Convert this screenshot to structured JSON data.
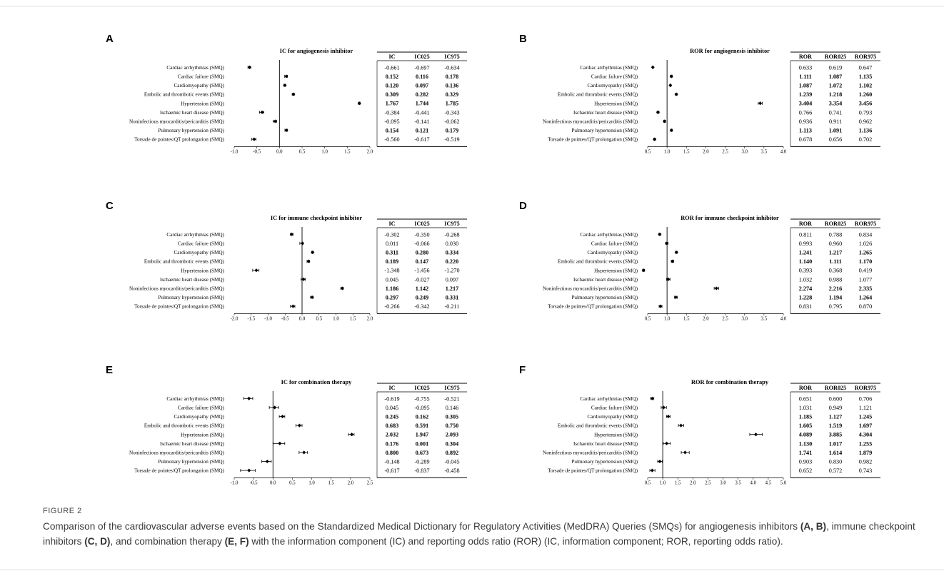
{
  "figure": {
    "label": "FIGURE 2",
    "caption_parts": [
      "Comparison of the cardiovascular adverse events based on the Standardized Medical Dictionary for Regulatory Activities (MedDRA) Queries (SMQs) for angiogenesis inhibitors ",
      "(A, B)",
      ", immune checkpoint inhibitors ",
      "(C, D)",
      ", and combination therapy ",
      "(E, F)",
      " with the information component (IC) and reporting odds ratio (ROR) (IC, information component; ROR, reporting odds ratio)."
    ]
  },
  "chart_data": [
    {
      "panel": "A",
      "type": "forest",
      "title": "IC for angiogenesis inhibitor",
      "columns": [
        "IC",
        "IC025",
        "IC975"
      ],
      "xlim": [
        -1.0,
        2.0
      ],
      "xticks": [
        "-1.0",
        "-0.5",
        "0.0",
        "0.5",
        "1.0",
        "1.5",
        "2.0"
      ],
      "reference": 0,
      "categories": [
        "Cardiac arrhythmias (SMQ)",
        "Cardiac failure (SMQ)",
        "Cardiomyopathy (SMQ)",
        "Embolic and thrombotic events (SMQ)",
        "Hypertension (SMQ)",
        "Ischaemic heart disease (SMQ)",
        "Noninfectious myocarditis/pericarditis (SMQ)",
        "Pulmonary hypertension (SMQ)",
        "Torsade de pointes/QT prolongation (SMQ)"
      ],
      "rows": [
        {
          "v": [
            "-0.661",
            "-0.697",
            "-0.634"
          ],
          "bold": false
        },
        {
          "v": [
            "0.152",
            "0.116",
            "0.178"
          ],
          "bold": true
        },
        {
          "v": [
            "0.120",
            "0.097",
            "0.136"
          ],
          "bold": true
        },
        {
          "v": [
            "0.309",
            "0.282",
            "0.329"
          ],
          "bold": true
        },
        {
          "v": [
            "1.767",
            "1.744",
            "1.785"
          ],
          "bold": true
        },
        {
          "v": [
            "-0.384",
            "-0.441",
            "-0.343"
          ],
          "bold": false
        },
        {
          "v": [
            "-0.095",
            "-0.141",
            "-0.062"
          ],
          "bold": false
        },
        {
          "v": [
            "0.154",
            "0.121",
            "0.179"
          ],
          "bold": true
        },
        {
          "v": [
            "-0.560",
            "-0.617",
            "-0.519"
          ],
          "bold": false
        }
      ]
    },
    {
      "panel": "B",
      "type": "forest",
      "title": "ROR for angiogenesis inhibitor",
      "columns": [
        "ROR",
        "ROR025",
        "ROR975"
      ],
      "xlim": [
        0.5,
        4.0
      ],
      "xticks": [
        "0.5",
        "1.0",
        "1.5",
        "2.0",
        "2.5",
        "3.0",
        "3.5",
        "4.0"
      ],
      "reference": 1,
      "categories": [
        "Cardiac arrhythmias (SMQ)",
        "Cardiac failure (SMQ)",
        "Cardiomyopathy (SMQ)",
        "Embolic and thrombotic events (SMQ)",
        "Hypertension (SMQ)",
        "Ischaemic heart disease (SMQ)",
        "Noninfectious myocarditis/pericarditis (SMQ)",
        "Pulmonary hypertension (SMQ)",
        "Torsade de pointes/QT prolongation (SMQ)"
      ],
      "rows": [
        {
          "v": [
            "0.633",
            "0.619",
            "0.647"
          ],
          "bold": false
        },
        {
          "v": [
            "1.111",
            "1.087",
            "1.135"
          ],
          "bold": true
        },
        {
          "v": [
            "1.087",
            "1.072",
            "1.102"
          ],
          "bold": true
        },
        {
          "v": [
            "1.239",
            "1.218",
            "1.260"
          ],
          "bold": true
        },
        {
          "v": [
            "3.404",
            "3.354",
            "3.456"
          ],
          "bold": true
        },
        {
          "v": [
            "0.766",
            "0.741",
            "0.793"
          ],
          "bold": false
        },
        {
          "v": [
            "0.936",
            "0.911",
            "0.962"
          ],
          "bold": false
        },
        {
          "v": [
            "1.113",
            "1.091",
            "1.136"
          ],
          "bold": true
        },
        {
          "v": [
            "0.678",
            "0.656",
            "0.702"
          ],
          "bold": false
        }
      ]
    },
    {
      "panel": "C",
      "type": "forest",
      "title": "IC for immune checkpoint inhibitor",
      "columns": [
        "IC",
        "IC025",
        "IC975"
      ],
      "xlim": [
        -2.0,
        2.0
      ],
      "xticks": [
        "-2.0",
        "-1.5",
        "-1.0",
        "-0.5",
        "0.0",
        "0.5",
        "1.0",
        "1.5",
        "2.0"
      ],
      "reference": 0,
      "categories": [
        "Cardiac arrhythmias (SMQ)",
        "Cardiac failure (SMQ)",
        "Cardiomyopathy (SMQ)",
        "Embolic and thrombotic events (SMQ)",
        "Hypertension (SMQ)",
        "Ischaemic heart disease (SMQ)",
        "Noninfectious myocarditis/pericarditis (SMQ)",
        "Pulmonary hypertension (SMQ)",
        "Torsade de pointes/QT prolongation (SMQ)"
      ],
      "rows": [
        {
          "v": [
            "-0.302",
            "-0.350",
            "-0.268"
          ],
          "bold": false
        },
        {
          "v": [
            "0.011",
            "-0.066",
            "0.030"
          ],
          "bold": false
        },
        {
          "v": [
            "0.311",
            "0.280",
            "0.334"
          ],
          "bold": true
        },
        {
          "v": [
            "0.189",
            "0.147",
            "0.220"
          ],
          "bold": true
        },
        {
          "v": [
            "-1.348",
            "-1.456",
            "-1.270"
          ],
          "bold": false
        },
        {
          "v": [
            "0.045",
            "-0.027",
            "0.097"
          ],
          "bold": false
        },
        {
          "v": [
            "1.186",
            "1.142",
            "1.217"
          ],
          "bold": true
        },
        {
          "v": [
            "0.297",
            "0.249",
            "0.331"
          ],
          "bold": true
        },
        {
          "v": [
            "-0.266",
            "-0.342",
            "-0.211"
          ],
          "bold": false
        }
      ]
    },
    {
      "panel": "D",
      "type": "forest",
      "title": "ROR for immune checkpoint inhibitor",
      "columns": [
        "ROR",
        "ROR025",
        "ROR975"
      ],
      "xlim": [
        0.5,
        4.0
      ],
      "xticks": [
        "0.5",
        "1.0",
        "1.5",
        "2.0",
        "2.5",
        "3.0",
        "3.5",
        "4.0"
      ],
      "reference": 1,
      "categories": [
        "Cardiac arrhythmias (SMQ)",
        "Cardiac failure (SMQ)",
        "Cardiomyopathy (SMQ)",
        "Embolic and thrombotic events (SMQ)",
        "Hypertension (SMQ)",
        "Ischaemic heart disease (SMQ)",
        "Noninfectious myocarditis/pericarditis (SMQ)",
        "Pulmonary hypertension (SMQ)",
        "Torsade de pointes/QT prolongation (SMQ)"
      ],
      "rows": [
        {
          "v": [
            "0.811",
            "0.788",
            "0.834"
          ],
          "bold": false
        },
        {
          "v": [
            "0.993",
            "0.960",
            "1.026"
          ],
          "bold": false
        },
        {
          "v": [
            "1.241",
            "1.217",
            "1.265"
          ],
          "bold": true
        },
        {
          "v": [
            "1.140",
            "1.111",
            "1.170"
          ],
          "bold": true
        },
        {
          "v": [
            "0.393",
            "0.368",
            "0.419"
          ],
          "bold": false
        },
        {
          "v": [
            "1.032",
            "0.988",
            "1.077"
          ],
          "bold": false
        },
        {
          "v": [
            "2.274",
            "2.216",
            "2.335"
          ],
          "bold": true
        },
        {
          "v": [
            "1.228",
            "1.194",
            "1.264"
          ],
          "bold": true
        },
        {
          "v": [
            "0.831",
            "0.795",
            "0.870"
          ],
          "bold": false
        }
      ]
    },
    {
      "panel": "E",
      "type": "forest",
      "title": "IC for combination therapy",
      "columns": [
        "IC",
        "IC025",
        "IC975"
      ],
      "xlim": [
        -1.0,
        2.5
      ],
      "xticks": [
        "-1.0",
        "-0.5",
        "0.0",
        "0.5",
        "1.0",
        "1.5",
        "2.0",
        "2.5"
      ],
      "reference": 0,
      "categories": [
        "Cardiac arrhythmias (SMQ)",
        "Cardiac failure (SMQ)",
        "Cardiomyopathy (SMQ)",
        "Embolic and thrombotic events (SMQ)",
        "Hypertension (SMQ)",
        "Ischaemic heart disease (SMQ)",
        "Noninfectious myocarditis/pericarditis (SMQ)",
        "Pulmonary hypertension (SMQ)",
        "Torsade de pointes/QT prolongation (SMQ)"
      ],
      "rows": [
        {
          "v": [
            "-0.619",
            "-0.755",
            "-0.521"
          ],
          "bold": false
        },
        {
          "v": [
            "0.045",
            "-0.095",
            "0.146"
          ],
          "bold": false
        },
        {
          "v": [
            "0.245",
            "0.162",
            "0.305"
          ],
          "bold": true
        },
        {
          "v": [
            "0.683",
            "0.591",
            "0.750"
          ],
          "bold": true
        },
        {
          "v": [
            "2.032",
            "1.947",
            "2.093"
          ],
          "bold": true
        },
        {
          "v": [
            "0.176",
            "0.001",
            "0.304"
          ],
          "bold": true
        },
        {
          "v": [
            "0.800",
            "0.673",
            "0.892"
          ],
          "bold": true
        },
        {
          "v": [
            "-0.148",
            "-0.289",
            "-0.045"
          ],
          "bold": false
        },
        {
          "v": [
            "-0.617",
            "-0.837",
            "-0.458"
          ],
          "bold": false
        }
      ]
    },
    {
      "panel": "F",
      "type": "forest",
      "title": "ROR for combination therapy",
      "columns": [
        "ROR",
        "ROR025",
        "ROR975"
      ],
      "xlim": [
        0.5,
        5.0
      ],
      "xticks": [
        "0.5",
        "1.0",
        "1.5",
        "2.0",
        "2.5",
        "3.0",
        "3.5",
        "4.0",
        "4.5",
        "5.0"
      ],
      "reference": 1,
      "categories": [
        "Cardiac arrhythmias (SMQ)",
        "Cardiac failure (SMQ)",
        "Cardiomyopathy (SMQ)",
        "Embolic and thrombotic events (SMQ)",
        "Hypertension (SMQ)",
        "Ischaemic heart disease (SMQ)",
        "Noninfectious myocarditis/pericarditis (SMQ)",
        "Pulmonary hypertension (SMQ)",
        "Torsade de pointes/QT prolongation (SMQ)"
      ],
      "rows": [
        {
          "v": [
            "0.651",
            "0.600",
            "0.706"
          ],
          "bold": false
        },
        {
          "v": [
            "1.031",
            "0.949",
            "1.121"
          ],
          "bold": false
        },
        {
          "v": [
            "1.185",
            "1.127",
            "1.245"
          ],
          "bold": true
        },
        {
          "v": [
            "1.605",
            "1.519",
            "1.697"
          ],
          "bold": true
        },
        {
          "v": [
            "4.089",
            "3.885",
            "4.304"
          ],
          "bold": true
        },
        {
          "v": [
            "1.130",
            "1.017",
            "1.255"
          ],
          "bold": true
        },
        {
          "v": [
            "1.741",
            "1.614",
            "1.879"
          ],
          "bold": true
        },
        {
          "v": [
            "0.903",
            "0.830",
            "0.982"
          ],
          "bold": false
        },
        {
          "v": [
            "0.652",
            "0.572",
            "0.743"
          ],
          "bold": false
        }
      ]
    }
  ]
}
